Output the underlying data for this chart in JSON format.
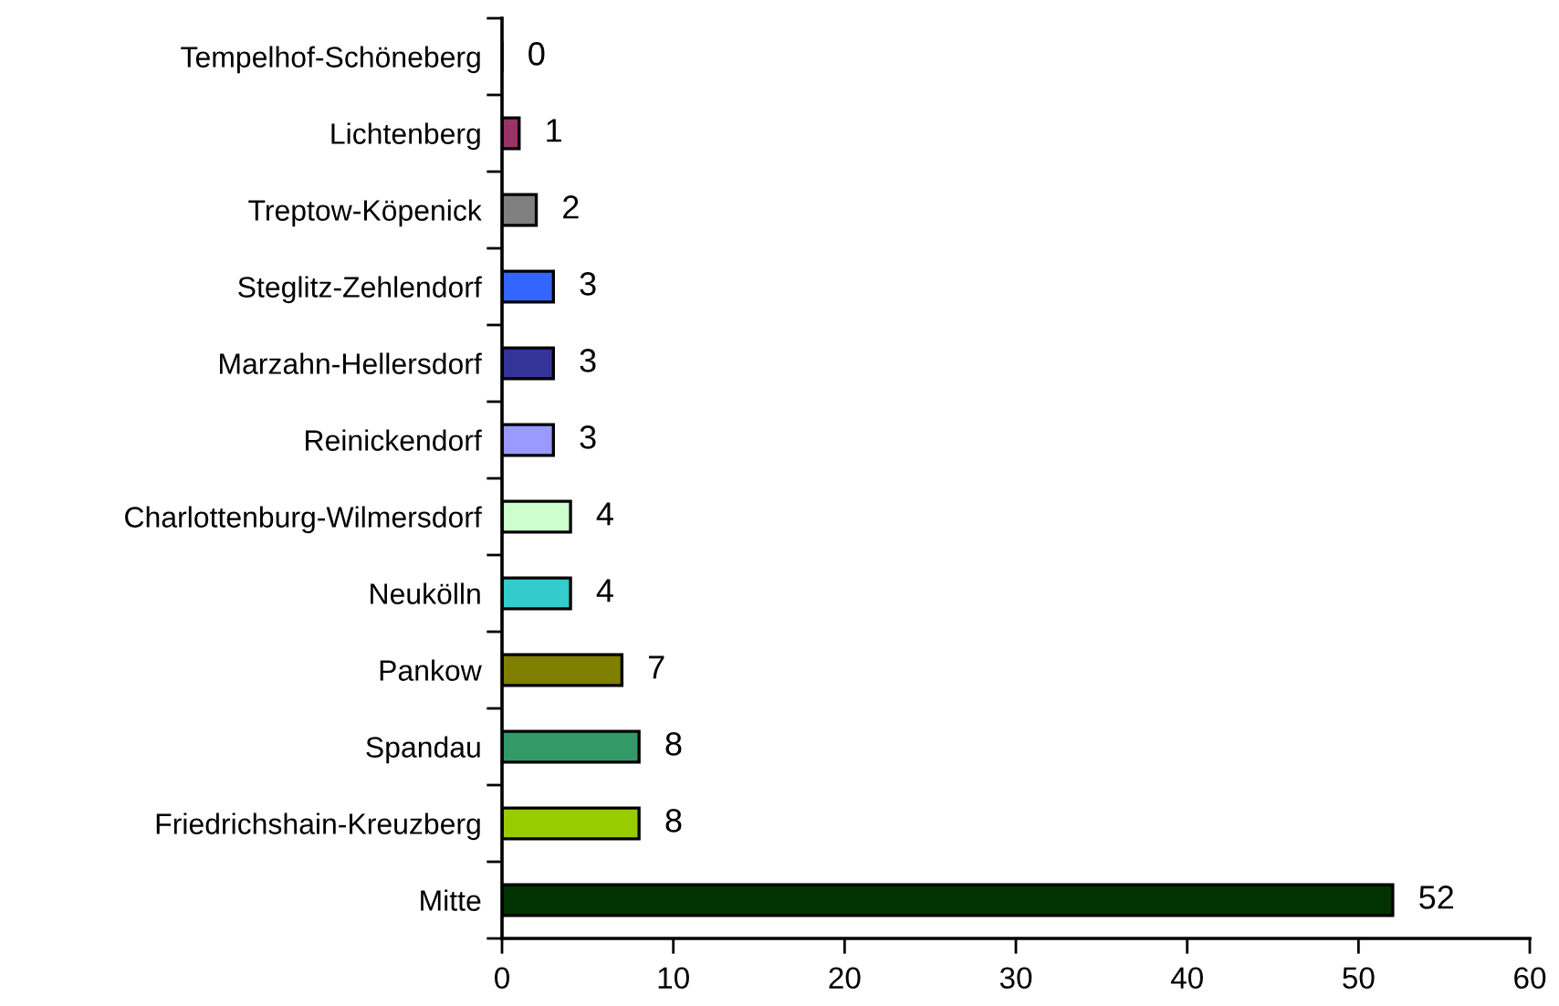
{
  "chart_data": {
    "type": "bar",
    "orientation": "horizontal",
    "categories": [
      "Tempelhof-Schöneberg",
      "Lichtenberg",
      "Treptow-Köpenick",
      "Steglitz-Zehlendorf",
      "Marzahn-Hellersdorf",
      "Reinickendorf",
      "Charlottenburg-Wilmersdorf",
      "Neukölln",
      "Pankow",
      "Spandau",
      "Friedrichshain-Kreuzberg",
      "Mitte"
    ],
    "values": [
      0,
      1,
      2,
      3,
      3,
      3,
      4,
      4,
      7,
      8,
      8,
      52
    ],
    "colors": [
      "#9966cc",
      "#993366",
      "#808080",
      "#3366ff",
      "#333399",
      "#9999ff",
      "#ccffcc",
      "#33cccc",
      "#808000",
      "#339966",
      "#99cc00",
      "#003300"
    ],
    "xlim": [
      0,
      60
    ],
    "xticks": [
      0,
      10,
      20,
      30,
      40,
      50,
      60
    ],
    "data_labels": true,
    "grid": false,
    "legend": false
  }
}
